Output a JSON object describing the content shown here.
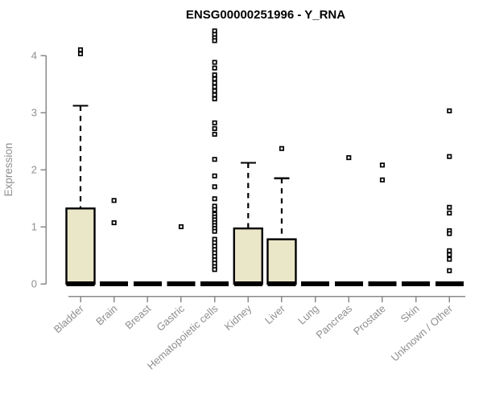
{
  "window": {
    "background": "#ffffff"
  },
  "colors": {
    "box_fill": "#eae6c8",
    "box_stroke": "#000000",
    "median": "#000000",
    "outlier_stroke": "#000000",
    "outlier_fill": "#ffffff",
    "axis": "#8a8a8a",
    "tick_text": "#8f8f8f",
    "title_text": "#000000"
  },
  "chart_data": {
    "type": "boxplot",
    "title": "ENSG00000251996 - Y_RNA",
    "xlabel": "",
    "ylabel": "Expression",
    "ylim": [
      0,
      4.45
    ],
    "yticks": [
      0,
      1,
      2,
      3,
      4
    ],
    "grid": false,
    "legend": "none",
    "categories": [
      "Bladder",
      "Brain",
      "Breast",
      "Gastric",
      "Hematopoietic cells",
      "Kidney",
      "Liver",
      "Lung",
      "Pancreas",
      "Prostate",
      "Skin",
      "Unknown / Other"
    ],
    "series": [
      {
        "name": "Bladder",
        "whisker_low": 0,
        "q1": 0,
        "median": 0,
        "q3": 1.32,
        "whisker_high": 3.12,
        "outliers": [
          4.1,
          4.03
        ]
      },
      {
        "name": "Brain",
        "whisker_low": 0,
        "q1": 0,
        "median": 0,
        "q3": 0,
        "whisker_high": 0,
        "outliers": [
          1.46,
          1.07
        ]
      },
      {
        "name": "Breast",
        "whisker_low": 0,
        "q1": 0,
        "median": 0,
        "q3": 0,
        "whisker_high": 0,
        "outliers": []
      },
      {
        "name": "Gastric",
        "whisker_low": 0,
        "q1": 0,
        "median": 0,
        "q3": 0,
        "whisker_high": 0,
        "outliers": [
          1.0
        ]
      },
      {
        "name": "Hematopoietic cells",
        "whisker_low": 0,
        "q1": 0,
        "median": 0,
        "q3": 0,
        "whisker_high": 0,
        "outliers": [
          4.43,
          4.37,
          4.31,
          4.26,
          3.88,
          3.78,
          3.66,
          3.59,
          3.52,
          3.45,
          3.38,
          3.31,
          3.24,
          2.82,
          2.72,
          2.62,
          2.18,
          1.89,
          1.7,
          1.49,
          1.36,
          1.3,
          1.22,
          1.17,
          1.12,
          1.07,
          1.02,
          0.97,
          0.92,
          0.78,
          0.72,
          0.66,
          0.6,
          0.54,
          0.48,
          0.42,
          0.36,
          0.3,
          0.25
        ]
      },
      {
        "name": "Kidney",
        "whisker_low": 0,
        "q1": 0,
        "median": 0,
        "q3": 0.97,
        "whisker_high": 2.12,
        "outliers": []
      },
      {
        "name": "Liver",
        "whisker_low": 0,
        "q1": 0,
        "median": 0,
        "q3": 0.78,
        "whisker_high": 1.85,
        "outliers": [
          2.37
        ]
      },
      {
        "name": "Lung",
        "whisker_low": 0,
        "q1": 0,
        "median": 0,
        "q3": 0,
        "whisker_high": 0,
        "outliers": []
      },
      {
        "name": "Pancreas",
        "whisker_low": 0,
        "q1": 0,
        "median": 0,
        "q3": 0,
        "whisker_high": 0,
        "outliers": [
          2.21
        ]
      },
      {
        "name": "Prostate",
        "whisker_low": 0,
        "q1": 0,
        "median": 0,
        "q3": 0,
        "whisker_high": 0,
        "outliers": [
          2.08,
          1.82
        ]
      },
      {
        "name": "Skin",
        "whisker_low": 0,
        "q1": 0,
        "median": 0,
        "q3": 0,
        "whisker_high": 0,
        "outliers": []
      },
      {
        "name": "Unknown / Other",
        "whisker_low": 0,
        "q1": 0,
        "median": 0,
        "q3": 0,
        "whisker_high": 0,
        "outliers": [
          3.03,
          2.23,
          1.34,
          1.24,
          0.93,
          0.88,
          0.58,
          0.51,
          0.43,
          0.23
        ]
      }
    ]
  }
}
